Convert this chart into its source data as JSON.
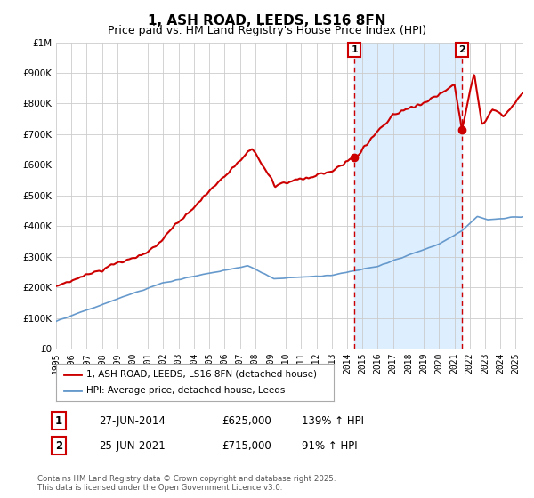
{
  "title": "1, ASH ROAD, LEEDS, LS16 8FN",
  "subtitle": "Price paid vs. HM Land Registry's House Price Index (HPI)",
  "legend_line1": "1, ASH ROAD, LEEDS, LS16 8FN (detached house)",
  "legend_line2": "HPI: Average price, detached house, Leeds",
  "footnote": "Contains HM Land Registry data © Crown copyright and database right 2025.\nThis data is licensed under the Open Government Licence v3.0.",
  "sale1_label": "1",
  "sale1_date": "27-JUN-2014",
  "sale1_price": "£625,000",
  "sale1_hpi": "139% ↑ HPI",
  "sale1_year": 2014.49,
  "sale1_value": 625000,
  "sale2_label": "2",
  "sale2_date": "25-JUN-2021",
  "sale2_price": "£715,000",
  "sale2_hpi": "91% ↑ HPI",
  "sale2_year": 2021.49,
  "sale2_value": 715000,
  "red_line_color": "#cc0000",
  "blue_line_color": "#6699cc",
  "fill_color": "#ddeeff",
  "background_color": "#ffffff",
  "grid_color": "#cccccc",
  "ylim_min": 0,
  "ylim_max": 1000000,
  "xlim_min": 1995,
  "xlim_max": 2025.5,
  "title_fontsize": 11,
  "subtitle_fontsize": 9
}
